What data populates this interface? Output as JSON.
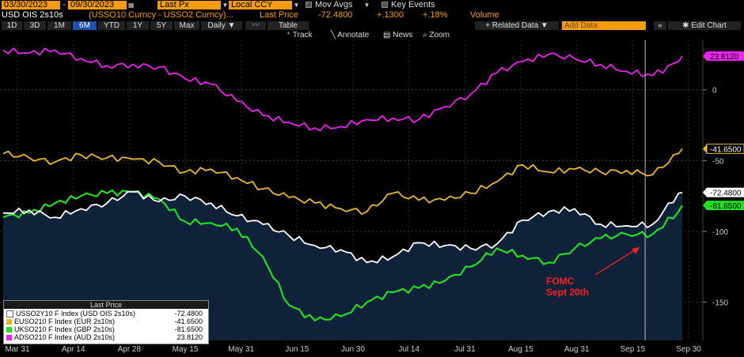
{
  "toolbar": {
    "start_date": "03/30/2023",
    "end_date": "09/30/2023",
    "field": "Last Px",
    "currency": "Local CCY",
    "mov_avgs": "Mov Avgs",
    "key_events": "Key Events",
    "title": "USD OIS 2s10s",
    "formula": "(USSO10 Curncy - USSO2 Curncy)...",
    "last_price_label": "Last Price",
    "last_price": "-72.4800",
    "change": "+.1300",
    "change_pct": "+.18%",
    "volume_label": "Volume",
    "periods": [
      "1D",
      "3D",
      "1M",
      "6M",
      "YTD",
      "1Y",
      "5Y",
      "Max"
    ],
    "active_period": "6M",
    "frequency": "Daily",
    "table": "Table",
    "related_data": "+ Related Data",
    "add_data_placeholder": "Add Data",
    "edit_chart": "Edit Chart",
    "track": "Track",
    "annotate": "Annotate",
    "news": "News",
    "zoom": "Zoom"
  },
  "legend": {
    "header": "Last Price",
    "items": [
      {
        "label": "USSO2Y10 F Index (USD OIS 2s10s)",
        "value": "-72.4800",
        "color": "#ffffff"
      },
      {
        "label": "EUSO210 F Index (EUR 2s10s)",
        "value": "-41.6500",
        "color": "#e8b830"
      },
      {
        "label": "UKSO210 F Index (GBP 2s10s)",
        "value": "-81.6500",
        "color": "#22dd22"
      },
      {
        "label": "ADSO210 F Index (AUD 2s10s)",
        "value": "23.8120",
        "color": "#ee22ee"
      }
    ]
  },
  "annotation": {
    "line1": "FOMC",
    "line2": "Sept 20th",
    "color": "#ff2020"
  },
  "chart_data": {
    "type": "line",
    "x_ticks": [
      "Mar 31",
      "Apr 14",
      "Apr 28",
      "May 15",
      "May 31",
      "Jun 15",
      "Jun 30",
      "Jul 14",
      "Jul 31",
      "Aug 15",
      "Aug 31",
      "Sep 15",
      "Sep 30"
    ],
    "y_ticks": [
      0,
      -50,
      -100,
      -150
    ],
    "ylim": [
      -177,
      35
    ],
    "last_values": [
      "-72.4800",
      "-41.6500",
      "-81.6500",
      "23.8120"
    ],
    "x_days": [
      0,
      7,
      14,
      21,
      28,
      35,
      42,
      49,
      56,
      63,
      70,
      77,
      84,
      91,
      98,
      105,
      112,
      119,
      126,
      133,
      140,
      147,
      154,
      161,
      168,
      175,
      182,
      183
    ],
    "series": [
      {
        "name": "USSO2Y10 F Index (USD OIS 2s10s)",
        "color": "#ffffff",
        "values": [
          -87,
          -85,
          -90,
          -84,
          -80,
          -72,
          -79,
          -75,
          -80,
          -89,
          -95,
          -103,
          -110,
          -113,
          -122,
          -118,
          -108,
          -110,
          -112,
          -109,
          -92,
          -86,
          -84,
          -95,
          -96,
          -95,
          -73,
          -72.48
        ]
      },
      {
        "name": "EUSO210 F Index (EUR 2s10s)",
        "color": "#e8b830",
        "values": [
          -45,
          -48,
          -51,
          -46,
          -48,
          -49,
          -51,
          -58,
          -56,
          -62,
          -70,
          -76,
          -80,
          -84,
          -86,
          -73,
          -78,
          -78,
          -73,
          -65,
          -53,
          -58,
          -56,
          -58,
          -57,
          -60,
          -45,
          -41.65
        ]
      },
      {
        "name": "UKSO210 F Index (GBP 2s10s)",
        "color": "#22dd22",
        "values": [
          -90,
          -87,
          -80,
          -75,
          -73,
          -72,
          -77,
          -93,
          -94,
          -98,
          -118,
          -152,
          -163,
          -160,
          -150,
          -143,
          -140,
          -135,
          -125,
          -112,
          -117,
          -122,
          -112,
          -105,
          -102,
          -102,
          -86,
          -81.65
        ]
      },
      {
        "name": "ADSO210 F Index (AUD 2s10s)",
        "color": "#ee22ee",
        "values": [
          28,
          26,
          28,
          22,
          17,
          18,
          16,
          8,
          4,
          -8,
          -18,
          -23,
          -27,
          -26,
          -21,
          -20,
          -21,
          -12,
          -3,
          12,
          20,
          25,
          22,
          18,
          13,
          10,
          20,
          23.812
        ]
      }
    ],
    "event_day": 173
  }
}
